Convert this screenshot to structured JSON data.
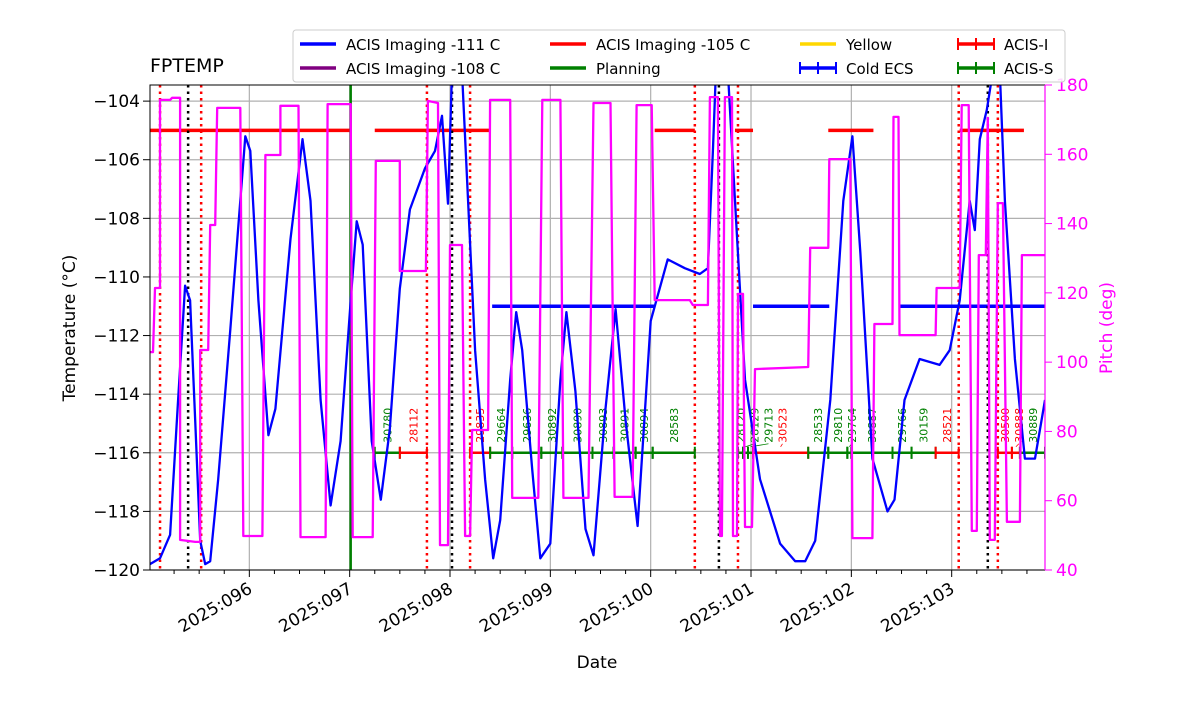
{
  "chart_data": {
    "type": "line",
    "title": "FPTEMP",
    "xlabel": "Date",
    "ylabel": "Temperature (°C)",
    "y2label": "Pitch (deg)",
    "xlim": [
      95.01,
      103.93
    ],
    "ylim": [
      -120,
      -103.45
    ],
    "y2lim": [
      40,
      180
    ],
    "grid": true,
    "x_ticks": [
      {
        "value": 96,
        "label": "2025:096"
      },
      {
        "value": 97,
        "label": "2025:097"
      },
      {
        "value": 98,
        "label": "2025:098"
      },
      {
        "value": 99,
        "label": "2025:099"
      },
      {
        "value": 100,
        "label": "2025:100"
      },
      {
        "value": 101,
        "label": "2025:101"
      },
      {
        "value": 102,
        "label": "2025:102"
      },
      {
        "value": 103,
        "label": "2025:103"
      }
    ],
    "y_ticks": [
      "−104",
      "−106",
      "−108",
      "−110",
      "−112",
      "−114",
      "−116",
      "−118",
      "−120"
    ],
    "y_tick_values": [
      -104,
      -106,
      -108,
      -110,
      -112,
      -114,
      -116,
      -118,
      -120
    ],
    "y2_ticks": [
      "40",
      "60",
      "80",
      "100",
      "120",
      "140",
      "160",
      "180"
    ],
    "y2_tick_values": [
      40,
      60,
      80,
      100,
      120,
      140,
      160,
      180
    ],
    "colors": {
      "temperature": "#0000ff",
      "pitch": "#ff00ff",
      "limit_111": "#0000ff",
      "limit_108": "#800080",
      "limit_105": "#ff0000",
      "planning": "#008000",
      "yellow": "#ffd700",
      "acis_i": "#ff0000",
      "acis_s": "#008000"
    },
    "legend": {
      "placement": "top",
      "entries": [
        {
          "label": "ACIS Imaging -111 C",
          "color": "#0000ff",
          "style": "line"
        },
        {
          "label": "ACIS Imaging -108 C",
          "color": "#800080",
          "style": "line"
        },
        {
          "label": "ACIS Imaging -105 C",
          "color": "#ff0000",
          "style": "line"
        },
        {
          "label": "Planning",
          "color": "#008000",
          "style": "line"
        },
        {
          "label": "Yellow",
          "color": "#ffd700",
          "style": "line"
        },
        {
          "label": "Cold ECS",
          "color": "#0000ff",
          "style": "errorbar"
        },
        {
          "label": "ACIS-I",
          "color": "#ff0000",
          "style": "errorbar"
        },
        {
          "label": "ACIS-S",
          "color": "#008000",
          "style": "errorbar"
        }
      ]
    },
    "series": [
      {
        "kind": "temperature",
        "axis": "left",
        "points": [
          [
            95.01,
            -119.8
          ],
          [
            95.11,
            -119.6
          ],
          [
            95.21,
            -118.8
          ],
          [
            95.29,
            -114.2
          ],
          [
            95.36,
            -110.3
          ],
          [
            95.41,
            -110.8
          ],
          [
            95.46,
            -114.9
          ],
          [
            95.51,
            -119.0
          ],
          [
            95.56,
            -119.8
          ],
          [
            95.61,
            -119.7
          ],
          [
            95.69,
            -116.9
          ],
          [
            95.81,
            -111.8
          ],
          [
            95.96,
            -105.2
          ],
          [
            96.01,
            -105.7
          ],
          [
            96.09,
            -110.8
          ],
          [
            96.19,
            -115.4
          ],
          [
            96.26,
            -114.5
          ],
          [
            96.41,
            -108.7
          ],
          [
            96.53,
            -105.3
          ],
          [
            96.61,
            -107.4
          ],
          [
            96.71,
            -114.2
          ],
          [
            96.81,
            -117.8
          ],
          [
            96.91,
            -115.6
          ],
          [
            97.01,
            -110.8
          ],
          [
            97.07,
            -108.1
          ],
          [
            97.13,
            -108.9
          ],
          [
            97.22,
            -115.6
          ],
          [
            97.31,
            -117.6
          ],
          [
            97.4,
            -115.2
          ],
          [
            97.5,
            -110.4
          ],
          [
            97.6,
            -107.7
          ],
          [
            97.75,
            -106.3
          ],
          [
            97.85,
            -105.7
          ],
          [
            97.92,
            -104.5
          ],
          [
            97.98,
            -107.5
          ],
          [
            98.02,
            -103.0
          ],
          [
            98.12,
            -103.0
          ],
          [
            98.25,
            -112.5
          ],
          [
            98.35,
            -116.9
          ],
          [
            98.43,
            -119.6
          ],
          [
            98.5,
            -118.3
          ],
          [
            98.6,
            -113.5
          ],
          [
            98.66,
            -111.2
          ],
          [
            98.72,
            -112.5
          ],
          [
            98.82,
            -116.6
          ],
          [
            98.9,
            -119.6
          ],
          [
            99.0,
            -119.1
          ],
          [
            99.1,
            -113.5
          ],
          [
            99.16,
            -111.2
          ],
          [
            99.25,
            -113.9
          ],
          [
            99.35,
            -118.6
          ],
          [
            99.43,
            -119.5
          ],
          [
            99.55,
            -114.5
          ],
          [
            99.65,
            -111.1
          ],
          [
            99.75,
            -114.9
          ],
          [
            99.87,
            -118.5
          ],
          [
            100.0,
            -111.5
          ],
          [
            100.17,
            -109.4
          ],
          [
            100.34,
            -109.7
          ],
          [
            100.49,
            -109.9
          ],
          [
            100.57,
            -109.7
          ],
          [
            100.62,
            -105.7
          ],
          [
            100.65,
            -103.0
          ],
          [
            100.77,
            -103.0
          ],
          [
            100.84,
            -107.4
          ],
          [
            100.94,
            -113.5
          ],
          [
            101.09,
            -116.9
          ],
          [
            101.29,
            -119.1
          ],
          [
            101.44,
            -119.7
          ],
          [
            101.54,
            -119.7
          ],
          [
            101.64,
            -119.0
          ],
          [
            101.79,
            -114.2
          ],
          [
            101.92,
            -107.4
          ],
          [
            102.01,
            -105.2
          ],
          [
            102.09,
            -109.2
          ],
          [
            102.21,
            -116.2
          ],
          [
            102.36,
            -118.0
          ],
          [
            102.43,
            -117.6
          ],
          [
            102.53,
            -114.2
          ],
          [
            102.68,
            -112.8
          ],
          [
            102.88,
            -113.0
          ],
          [
            102.98,
            -112.5
          ],
          [
            103.08,
            -110.8
          ],
          [
            103.18,
            -107.4
          ],
          [
            103.23,
            -108.4
          ],
          [
            103.28,
            -105.3
          ],
          [
            103.35,
            -104.3
          ],
          [
            103.41,
            -103.0
          ],
          [
            103.48,
            -103.0
          ],
          [
            103.53,
            -107.4
          ],
          [
            103.63,
            -112.8
          ],
          [
            103.73,
            -116.2
          ],
          [
            103.83,
            -116.2
          ],
          [
            103.93,
            -114.2
          ]
        ]
      },
      {
        "kind": "pitch",
        "axis": "right",
        "points": [
          [
            95.01,
            102.9
          ],
          [
            95.04,
            102.9
          ],
          [
            95.06,
            121.4
          ],
          [
            95.11,
            121.4
          ],
          [
            95.11,
            175.7
          ],
          [
            95.21,
            175.7
          ],
          [
            95.23,
            176.3
          ],
          [
            95.31,
            176.3
          ],
          [
            95.31,
            48.7
          ],
          [
            95.46,
            48.1
          ],
          [
            95.51,
            48.1
          ],
          [
            95.51,
            103.5
          ],
          [
            95.59,
            103.5
          ],
          [
            95.61,
            139.6
          ],
          [
            95.66,
            139.6
          ],
          [
            95.68,
            173.4
          ],
          [
            95.91,
            173.4
          ],
          [
            95.94,
            49.8
          ],
          [
            96.13,
            49.8
          ],
          [
            96.16,
            159.8
          ],
          [
            96.31,
            159.8
          ],
          [
            96.31,
            174.0
          ],
          [
            96.49,
            174.0
          ],
          [
            96.51,
            49.5
          ],
          [
            96.76,
            49.5
          ],
          [
            96.78,
            174.5
          ],
          [
            97.01,
            174.5
          ],
          [
            97.03,
            49.5
          ],
          [
            97.23,
            49.5
          ],
          [
            97.26,
            158.1
          ],
          [
            97.5,
            158.1
          ],
          [
            97.5,
            126.3
          ],
          [
            97.76,
            126.3
          ],
          [
            97.78,
            175.4
          ],
          [
            97.88,
            174.8
          ],
          [
            97.9,
            47.2
          ],
          [
            97.98,
            47.2
          ],
          [
            98.0,
            133.8
          ],
          [
            98.12,
            133.8
          ],
          [
            98.15,
            49.8
          ],
          [
            98.2,
            49.8
          ],
          [
            98.22,
            80.4
          ],
          [
            98.38,
            80.4
          ],
          [
            98.4,
            175.7
          ],
          [
            98.6,
            175.7
          ],
          [
            98.62,
            60.8
          ],
          [
            98.88,
            60.8
          ],
          [
            98.92,
            175.7
          ],
          [
            99.1,
            175.7
          ],
          [
            99.13,
            60.8
          ],
          [
            99.38,
            60.8
          ],
          [
            99.43,
            174.8
          ],
          [
            99.6,
            174.8
          ],
          [
            99.64,
            61.1
          ],
          [
            99.82,
            61.1
          ],
          [
            99.86,
            174.2
          ],
          [
            100.01,
            174.2
          ],
          [
            100.04,
            117.9
          ],
          [
            100.39,
            117.9
          ],
          [
            100.42,
            116.5
          ],
          [
            100.57,
            116.5
          ],
          [
            100.59,
            176.5
          ],
          [
            100.67,
            176.5
          ],
          [
            100.69,
            49.8
          ],
          [
            100.71,
            49.8
          ],
          [
            100.74,
            176.5
          ],
          [
            100.81,
            176.5
          ],
          [
            100.82,
            49.8
          ],
          [
            100.86,
            49.8
          ],
          [
            100.87,
            119.7
          ],
          [
            100.92,
            119.7
          ],
          [
            100.94,
            52.4
          ],
          [
            101.01,
            52.4
          ],
          [
            101.04,
            98.0
          ],
          [
            101.57,
            98.6
          ],
          [
            101.59,
            133.0
          ],
          [
            101.77,
            133.0
          ],
          [
            101.78,
            158.6
          ],
          [
            101.99,
            158.6
          ],
          [
            102.01,
            49.2
          ],
          [
            102.21,
            49.2
          ],
          [
            102.23,
            111.0
          ],
          [
            102.41,
            111.0
          ],
          [
            102.42,
            170.8
          ],
          [
            102.47,
            170.8
          ],
          [
            102.48,
            107.8
          ],
          [
            102.84,
            107.8
          ],
          [
            102.85,
            121.4
          ],
          [
            103.08,
            121.4
          ],
          [
            103.1,
            174.2
          ],
          [
            103.17,
            174.2
          ],
          [
            103.2,
            51.3
          ],
          [
            103.25,
            51.3
          ],
          [
            103.27,
            130.9
          ],
          [
            103.34,
            130.9
          ],
          [
            103.36,
            170.5
          ],
          [
            103.38,
            48.7
          ],
          [
            103.43,
            48.7
          ],
          [
            103.46,
            145.9
          ],
          [
            103.51,
            145.9
          ],
          [
            103.55,
            53.9
          ],
          [
            103.68,
            53.9
          ],
          [
            103.7,
            130.9
          ],
          [
            103.93,
            130.9
          ]
        ]
      }
    ],
    "limit_segments": [
      {
        "value": -105,
        "color": "#ff0000",
        "ranges": [
          [
            95.01,
            97.01
          ],
          [
            97.25,
            98.39
          ],
          [
            100.04,
            100.44
          ],
          [
            100.84,
            101.02
          ],
          [
            101.77,
            102.22
          ],
          [
            103.08,
            103.72
          ]
        ]
      },
      {
        "value": -111,
        "color": "#0000ff",
        "ranges": [
          [
            98.42,
            100.04
          ],
          [
            101.02,
            101.78
          ],
          [
            102.48,
            103.93
          ]
        ]
      }
    ],
    "vlines": {
      "red_dotted": [
        95.11,
        95.52,
        97.77,
        98.2,
        100.44,
        100.87,
        103.07,
        103.46
      ],
      "black_dotted": [
        95.39,
        98.02,
        100.68,
        103.36
      ],
      "green_solid": [
        97.01
      ]
    },
    "obsid_bar_level": -116,
    "obsids": [
      {
        "id": "30780",
        "inst": "S",
        "start": 97.25,
        "end": 97.5
      },
      {
        "id": "28112",
        "inst": "I",
        "start": 97.5,
        "end": 97.77
      },
      {
        "id": "29835",
        "inst": "I",
        "start": 98.2,
        "end": 98.4
      },
      {
        "id": "29664",
        "inst": "S",
        "start": 98.4,
        "end": 98.62
      },
      {
        "id": "29636",
        "inst": "S",
        "start": 98.62,
        "end": 98.91
      },
      {
        "id": "30892",
        "inst": "S",
        "start": 98.91,
        "end": 99.12
      },
      {
        "id": "30890",
        "inst": "S",
        "start": 99.12,
        "end": 99.42
      },
      {
        "id": "30893",
        "inst": "S",
        "start": 99.42,
        "end": 99.63
      },
      {
        "id": "30891",
        "inst": "S",
        "start": 99.63,
        "end": 99.85
      },
      {
        "id": "30894",
        "inst": "S",
        "start": 99.85,
        "end": 100.02
      },
      {
        "id": "28583",
        "inst": "S",
        "start": 100.02,
        "end": 100.44
      },
      {
        "id": "28120",
        "inst": "S",
        "start": 100.87,
        "end": 100.92
      },
      {
        "id": "28129",
        "inst": "S",
        "start": 100.92,
        "end": 100.97
      },
      {
        "id": "29713",
        "inst": "S",
        "start": 100.97,
        "end": 101.02
      },
      {
        "id": "30523",
        "inst": "I",
        "start": 101.02,
        "end": 101.57
      },
      {
        "id": "28533",
        "inst": "S",
        "start": 101.57,
        "end": 101.77
      },
      {
        "id": "29810",
        "inst": "S",
        "start": 101.77,
        "end": 101.96
      },
      {
        "id": "29764",
        "inst": "S",
        "start": 101.96,
        "end": 102.0
      },
      {
        "id": "30887",
        "inst": "S",
        "start": 102.0,
        "end": 102.41
      },
      {
        "id": "29766",
        "inst": "S",
        "start": 102.41,
        "end": 102.6
      },
      {
        "id": "30159",
        "inst": "S",
        "start": 102.6,
        "end": 102.84
      },
      {
        "id": "28521",
        "inst": "I",
        "start": 102.84,
        "end": 103.07
      },
      {
        "id": "30500",
        "inst": "I",
        "start": 103.46,
        "end": 103.6
      },
      {
        "id": "30888",
        "inst": "I",
        "start": 103.6,
        "end": 103.68
      },
      {
        "id": "30889",
        "inst": "S",
        "start": 103.68,
        "end": 103.93
      }
    ]
  }
}
